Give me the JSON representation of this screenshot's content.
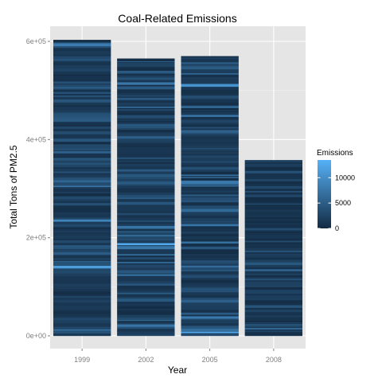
{
  "chart_data": {
    "type": "bar",
    "title": "Coal-Related Emissions",
    "xlabel": "Year",
    "ylabel": "Total Tons of PM2.5",
    "categories": [
      "1999",
      "2002",
      "2005",
      "2008"
    ],
    "values": [
      603000,
      565000,
      570000,
      358000
    ],
    "ylim": [
      -20000,
      625000
    ],
    "y_ticks": [
      0,
      200000,
      400000,
      600000
    ],
    "y_tick_labels": [
      "0e+00",
      "2e+05",
      "4e+05",
      "6e+05"
    ],
    "grid": true,
    "legend": {
      "title": "Emissions",
      "position": "right",
      "ticks": [
        0,
        5000,
        10000
      ],
      "tick_labels": [
        "0",
        "5000",
        "10000"
      ],
      "range": [
        0,
        13500
      ]
    },
    "colors": {
      "low": "#132B43",
      "high": "#56B1F7",
      "panel": "#E5E5E5",
      "grid_major": "#FFFFFF",
      "grid_minor": "#F2F2F2"
    }
  }
}
